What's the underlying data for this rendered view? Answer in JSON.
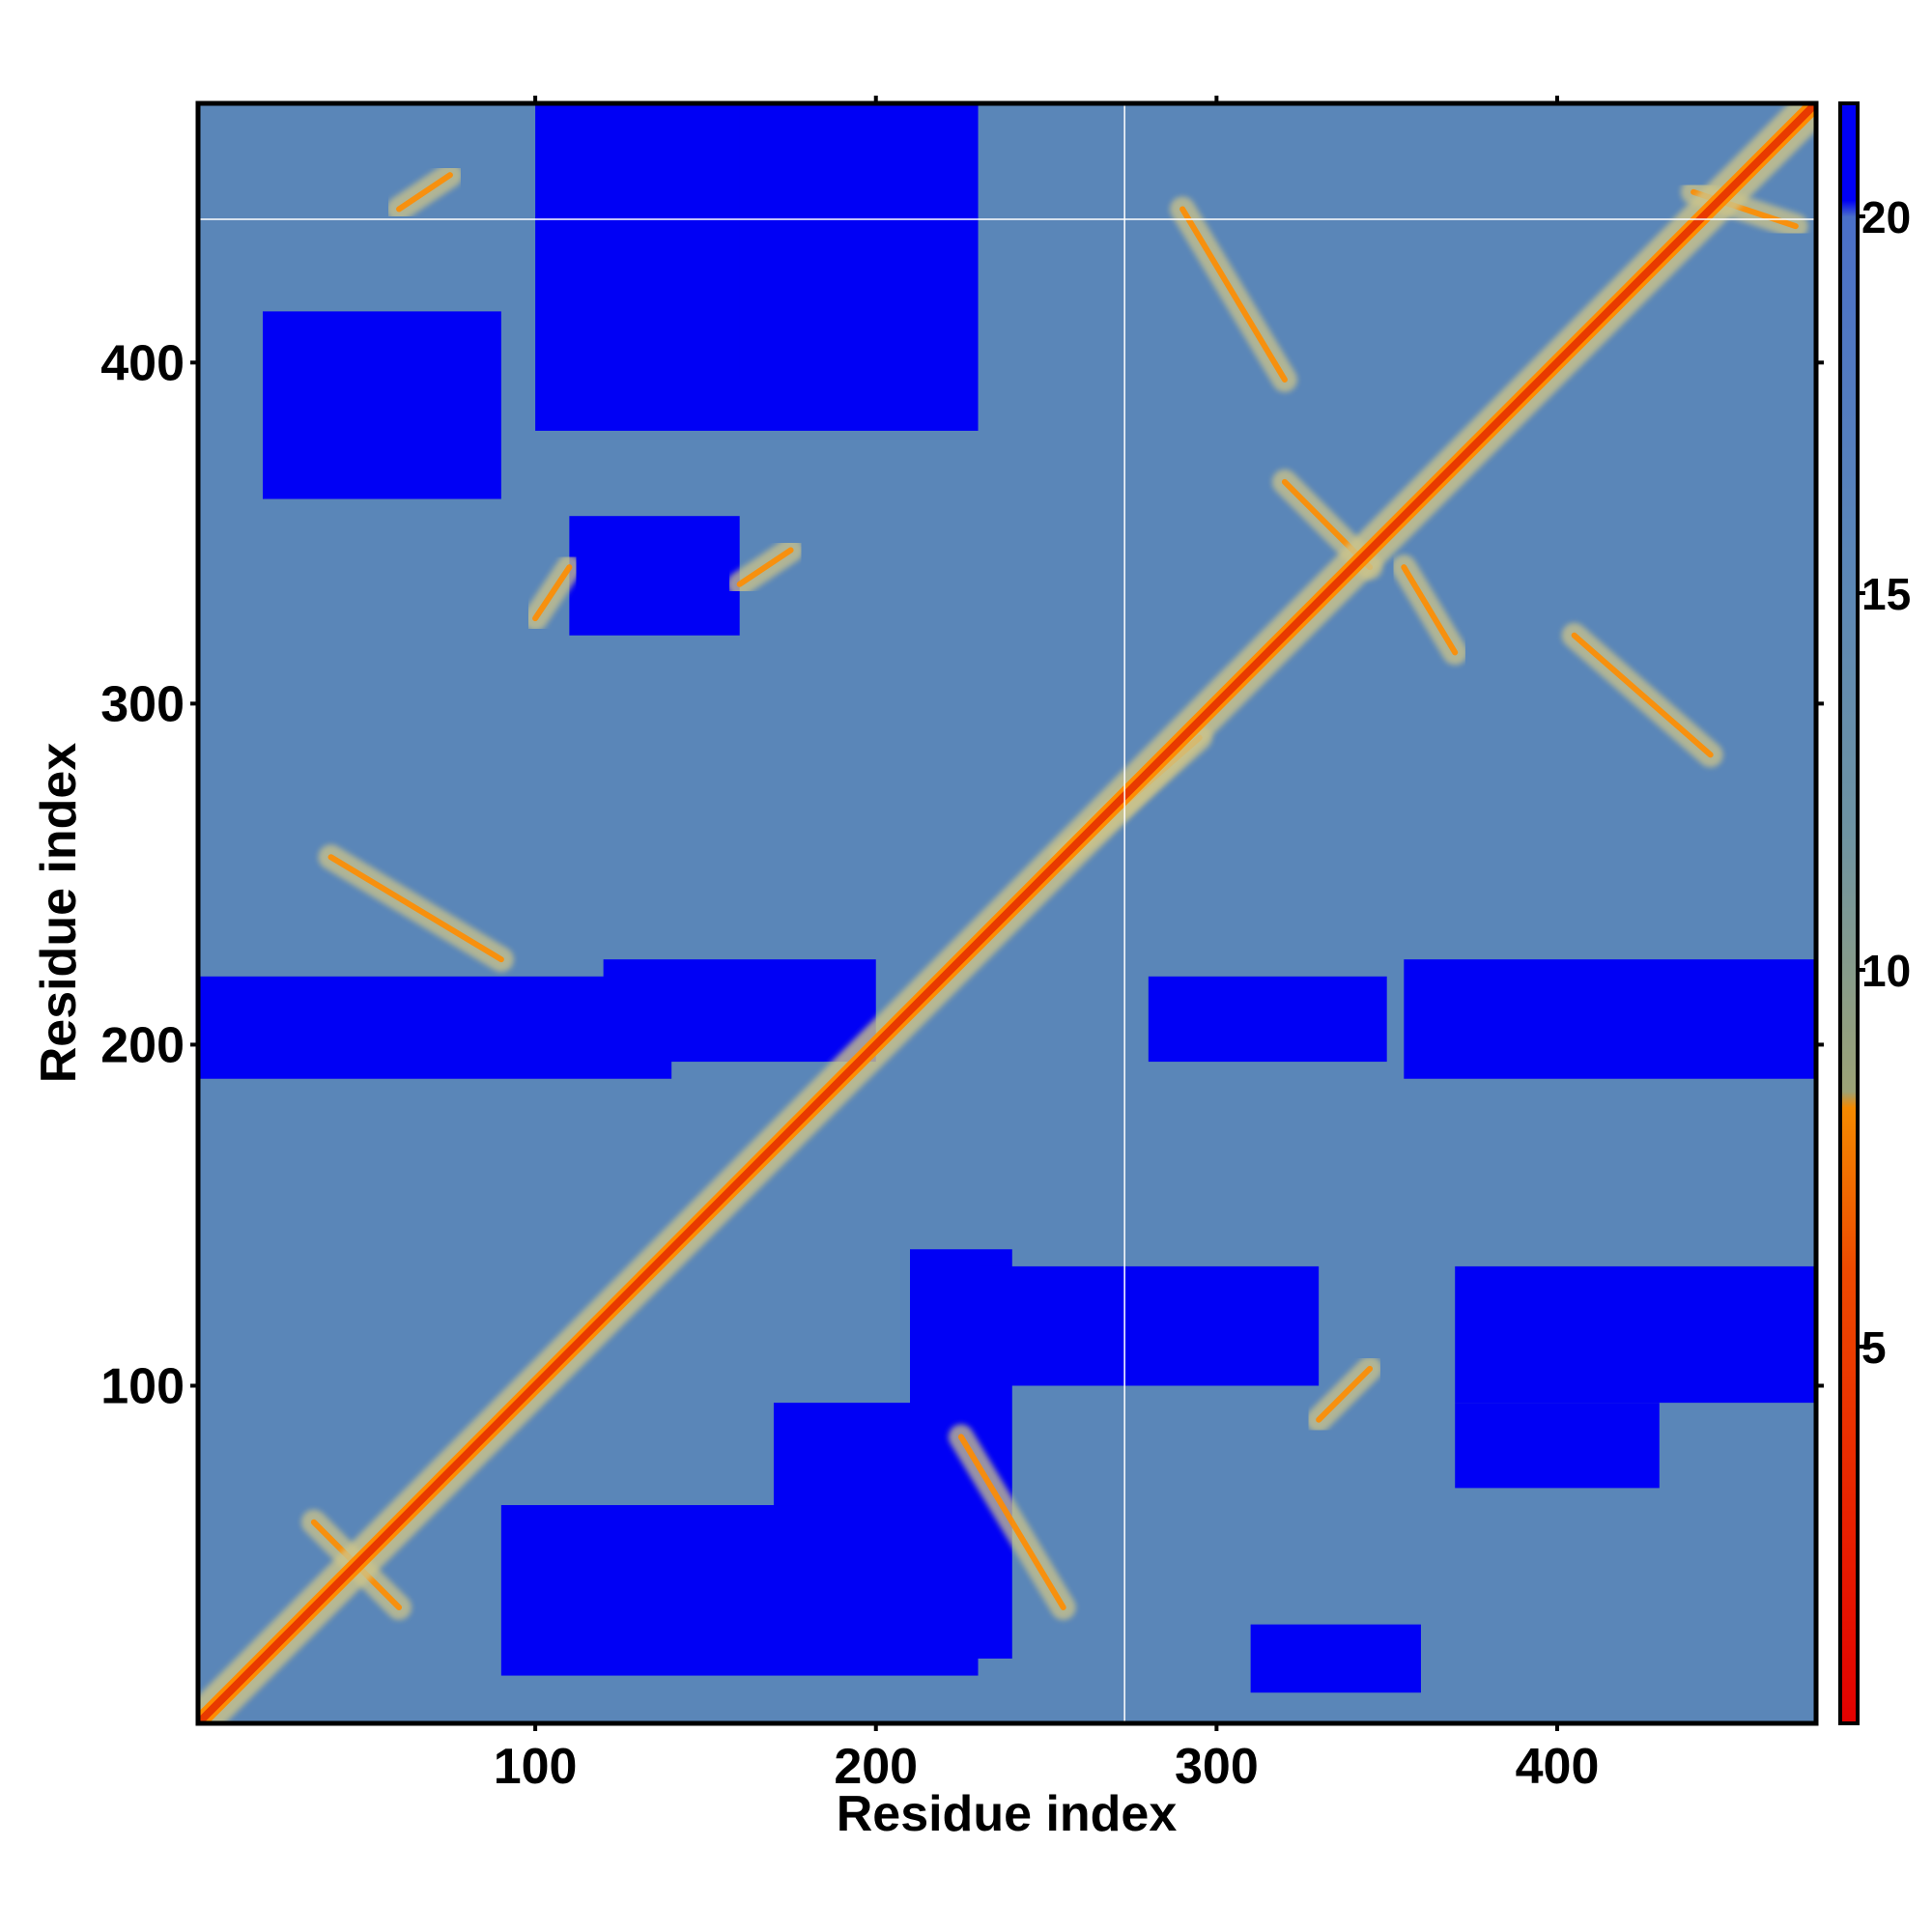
{
  "chart_data": {
    "type": "heatmap",
    "description_of_values": "pairwise residue distance map",
    "xlabel": "Residue index",
    "ylabel": "Residue index",
    "xlim": [
      1,
      476
    ],
    "ylim": [
      1,
      476
    ],
    "x_ticks": [
      100,
      200,
      300,
      400
    ],
    "x_tick_labels": [
      "100",
      "200",
      "300",
      "400"
    ],
    "y_ticks": [
      100,
      200,
      300,
      400
    ],
    "y_tick_labels": [
      "100",
      "200",
      "300",
      "400"
    ],
    "colorbar": {
      "ticks": [
        5,
        10,
        15,
        20
      ],
      "tick_labels": [
        "5",
        "10",
        "15",
        "20"
      ],
      "range": [
        0,
        21.5
      ],
      "colors": [
        "#e30000",
        "#f48a00",
        "#8da07a",
        "#5a86b8",
        "#0000f5"
      ]
    },
    "colors": {
      "diagonal": "#e83a00",
      "contact": "#ff8c00",
      "near": "#cdc58a",
      "background": "#5a86b8",
      "far": "#0000f5",
      "guide_lines": "#ffffff"
    },
    "guide_lines": {
      "x": 273,
      "y": 442
    },
    "diagonal": {
      "from": 1,
      "to": 476
    },
    "far_regions": [
      {
        "x": [
          100,
          230
        ],
        "y": [
          380,
          476
        ]
      },
      {
        "x": [
          160,
          230
        ],
        "y": [
          395,
          476
        ]
      },
      {
        "x": [
          1,
          140
        ],
        "y": [
          190,
          220
        ]
      },
      {
        "x": [
          120,
          200
        ],
        "y": [
          195,
          225
        ]
      },
      {
        "x": [
          210,
          240
        ],
        "y": [
          20,
          140
        ]
      },
      {
        "x": [
          170,
          230
        ],
        "y": [
          40,
          95
        ]
      },
      {
        "x": [
          90,
          230
        ],
        "y": [
          15,
          65
        ]
      },
      {
        "x": [
          355,
          476
        ],
        "y": [
          190,
          225
        ]
      },
      {
        "x": [
          370,
          476
        ],
        "y": [
          95,
          135
        ]
      },
      {
        "x": [
          230,
          330
        ],
        "y": [
          100,
          135
        ]
      },
      {
        "x": [
          310,
          360
        ],
        "y": [
          10,
          30
        ]
      },
      {
        "x": [
          370,
          430
        ],
        "y": [
          70,
          95
        ]
      },
      {
        "x": [
          280,
          350
        ],
        "y": [
          195,
          220
        ]
      },
      {
        "x": [
          20,
          90
        ],
        "y": [
          360,
          415
        ]
      },
      {
        "x": [
          110,
          160
        ],
        "y": [
          320,
          355
        ]
      }
    ],
    "contact_bands": [
      {
        "from": [
          35,
          60
        ],
        "to": [
          60,
          35
        ]
      },
      {
        "from": [
          60,
          445
        ],
        "to": [
          75,
          455
        ]
      },
      {
        "from": [
          40,
          255
        ],
        "to": [
          90,
          225
        ]
      },
      {
        "from": [
          225,
          85
        ],
        "to": [
          255,
          35
        ]
      },
      {
        "from": [
          320,
          365
        ],
        "to": [
          345,
          340
        ]
      },
      {
        "from": [
          355,
          340
        ],
        "to": [
          370,
          315
        ]
      },
      {
        "from": [
          405,
          320
        ],
        "to": [
          445,
          285
        ]
      },
      {
        "from": [
          320,
          395
        ],
        "to": [
          290,
          445
        ]
      },
      {
        "from": [
          255,
          255
        ],
        "to": [
          295,
          290
        ]
      },
      {
        "from": [
          440,
          450
        ],
        "to": [
          470,
          440
        ]
      },
      {
        "from": [
          330,
          90
        ],
        "to": [
          345,
          105
        ]
      },
      {
        "from": [
          100,
          325
        ],
        "to": [
          110,
          340
        ]
      },
      {
        "from": [
          160,
          335
        ],
        "to": [
          175,
          345
        ]
      }
    ]
  }
}
